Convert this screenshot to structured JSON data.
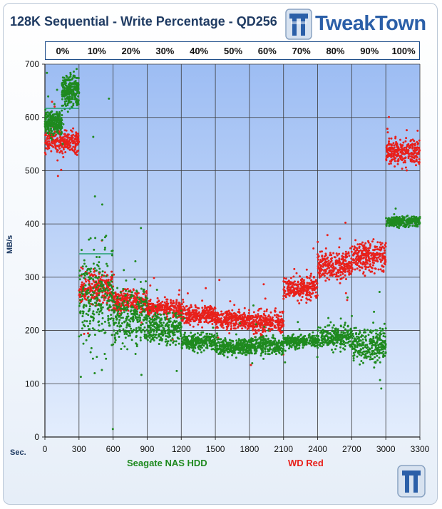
{
  "header": {
    "title": "128K Sequential - Write Percentage - QD256",
    "brand": "TweakTown"
  },
  "colors": {
    "seagate": "#1f8a1f",
    "wd": "#e8201b",
    "plot_bg_top": "#9dbdf3",
    "plot_bg_bottom": "#e3edfd",
    "grid": "#3c3c3c"
  },
  "write_percentages": [
    "0%",
    "10%",
    "20%",
    "30%",
    "40%",
    "50%",
    "60%",
    "70%",
    "80%",
    "90%",
    "100%"
  ],
  "chart_data": {
    "type": "scatter",
    "title": "128K Sequential - Write Percentage - QD256",
    "xlabel": "Sec.",
    "ylabel": "MB/s",
    "xlim": [
      0,
      3300
    ],
    "ylim": [
      0,
      700
    ],
    "xticks": [
      0,
      300,
      600,
      900,
      1200,
      1500,
      1800,
      2100,
      2400,
      2700,
      3000,
      3300
    ],
    "yticks": [
      0,
      100,
      200,
      300,
      400,
      500,
      600,
      700
    ],
    "grid": true,
    "legend": "bottom",
    "series": [
      {
        "name": "Seagate NAS HDD",
        "color": "#1f8a1f",
        "segments": [
          {
            "x_start": 0,
            "x_end": 150,
            "mean": 590,
            "spread": 10
          },
          {
            "x_start": 150,
            "x_end": 300,
            "mean": 650,
            "spread": 15
          },
          {
            "x_start": 300,
            "x_end": 600,
            "mean": 265,
            "spread": 50
          },
          {
            "x_start": 600,
            "x_end": 900,
            "mean": 225,
            "spread": 25
          },
          {
            "x_start": 900,
            "x_end": 1200,
            "mean": 205,
            "spread": 15
          },
          {
            "x_start": 1200,
            "x_end": 1500,
            "mean": 180,
            "spread": 8
          },
          {
            "x_start": 1500,
            "x_end": 1800,
            "mean": 170,
            "spread": 7
          },
          {
            "x_start": 1800,
            "x_end": 2100,
            "mean": 172,
            "spread": 8
          },
          {
            "x_start": 2100,
            "x_end": 2400,
            "mean": 180,
            "spread": 6
          },
          {
            "x_start": 2400,
            "x_end": 2700,
            "mean": 188,
            "spread": 10
          },
          {
            "x_start": 2700,
            "x_end": 3000,
            "mean": 172,
            "spread": 15
          },
          {
            "x_start": 3000,
            "x_end": 3300,
            "mean": 405,
            "spread": 5
          }
        ],
        "average_lines": [
          {
            "x_start": 0,
            "x_end": 300,
            "value": 617
          },
          {
            "x_start": 300,
            "x_end": 600,
            "value": 344
          }
        ]
      },
      {
        "name": "WD Red",
        "color": "#e8201b",
        "segments": [
          {
            "x_start": 0,
            "x_end": 300,
            "mean": 555,
            "spread": 10
          },
          {
            "x_start": 300,
            "x_end": 600,
            "mean": 278,
            "spread": 15
          },
          {
            "x_start": 600,
            "x_end": 900,
            "mean": 255,
            "spread": 10
          },
          {
            "x_start": 900,
            "x_end": 1200,
            "mean": 242,
            "spread": 8
          },
          {
            "x_start": 1200,
            "x_end": 1500,
            "mean": 230,
            "spread": 8
          },
          {
            "x_start": 1500,
            "x_end": 1800,
            "mean": 220,
            "spread": 8
          },
          {
            "x_start": 1800,
            "x_end": 2100,
            "mean": 215,
            "spread": 12
          },
          {
            "x_start": 2100,
            "x_end": 2400,
            "mean": 280,
            "spread": 10
          },
          {
            "x_start": 2400,
            "x_end": 2700,
            "mean": 322,
            "spread": 12
          },
          {
            "x_start": 2700,
            "x_end": 3000,
            "mean": 340,
            "spread": 15
          },
          {
            "x_start": 3000,
            "x_end": 3300,
            "mean": 537,
            "spread": 12
          }
        ]
      }
    ]
  }
}
